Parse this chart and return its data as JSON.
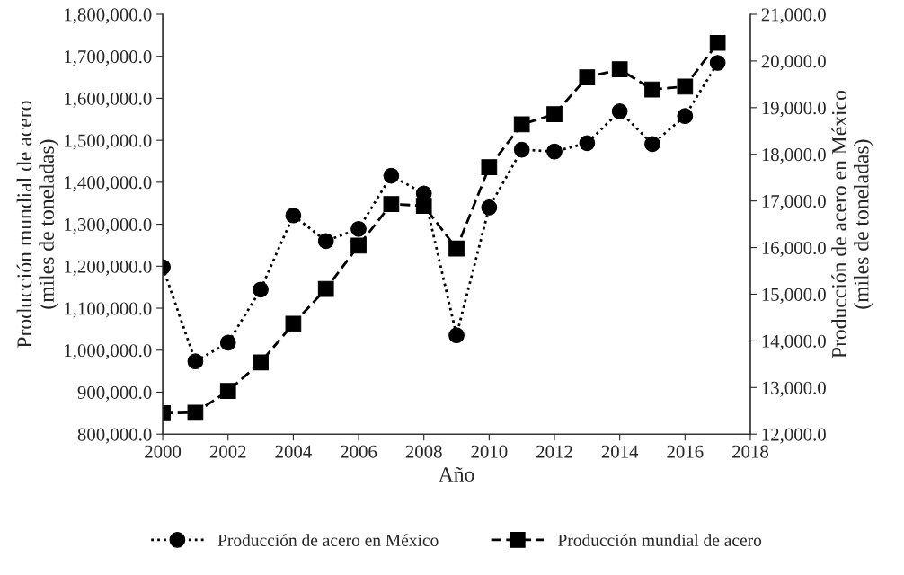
{
  "chart_data": {
    "type": "line",
    "xlabel": "Año",
    "ylabel": "Producción mundial de acero\n(miles de toneladas)",
    "y2label": "Producción de acero en México\n(miles de toneladas)",
    "x": [
      2000,
      2001,
      2002,
      2003,
      2004,
      2005,
      2006,
      2007,
      2008,
      2009,
      2010,
      2011,
      2012,
      2013,
      2014,
      2015,
      2016,
      2017
    ],
    "series": [
      {
        "name": "Producción de acero en México",
        "color": "#000000",
        "axis": "y2",
        "marker": "circle",
        "line_style": "dotted",
        "values": [
          15580,
          13560,
          13960,
          15100,
          16690,
          16140,
          16400,
          17540,
          17160,
          14120,
          16860,
          18100,
          18060,
          18240,
          18920,
          18220,
          18820,
          19960
        ]
      },
      {
        "name": "Producción mundial de acero",
        "color": "#000000",
        "axis": "y",
        "marker": "square",
        "line_style": "dashed",
        "values": [
          850000,
          851000,
          903000,
          971000,
          1063000,
          1146000,
          1249000,
          1348000,
          1344000,
          1242000,
          1436000,
          1538000,
          1562000,
          1650000,
          1669000,
          1621000,
          1628000,
          1732000
        ]
      }
    ],
    "xlim": [
      2000,
      2018
    ],
    "xticks": [
      2000,
      2002,
      2004,
      2006,
      2008,
      2010,
      2012,
      2014,
      2016,
      2018
    ],
    "ylim": [
      800000,
      1800000
    ],
    "yticks": [
      {
        "value": 800000,
        "label": "800,000.0"
      },
      {
        "value": 900000,
        "label": "900,000.0"
      },
      {
        "value": 1000000,
        "label": "1,000,000.0"
      },
      {
        "value": 1100000,
        "label": "1,100,000.0"
      },
      {
        "value": 1200000,
        "label": "1,200,000.0"
      },
      {
        "value": 1300000,
        "label": "1,300,000.0"
      },
      {
        "value": 1400000,
        "label": "1,400,000.0"
      },
      {
        "value": 1500000,
        "label": "1,500,000.0"
      },
      {
        "value": 1600000,
        "label": "1,600,000.0"
      },
      {
        "value": 1700000,
        "label": "1,700,000.0"
      },
      {
        "value": 1800000,
        "label": "1,800,000.0"
      }
    ],
    "y2lim": [
      12000,
      21000
    ],
    "y2ticks": [
      {
        "value": 12000,
        "label": "12,000.0"
      },
      {
        "value": 13000,
        "label": "13,000.0"
      },
      {
        "value": 14000,
        "label": "14,000.0"
      },
      {
        "value": 15000,
        "label": "15,000.0"
      },
      {
        "value": 16000,
        "label": "16,000.0"
      },
      {
        "value": 17000,
        "label": "17,000.0"
      },
      {
        "value": 18000,
        "label": "18,000.0"
      },
      {
        "value": 19000,
        "label": "19,000.0"
      },
      {
        "value": 20000,
        "label": "20,000.0"
      },
      {
        "value": 21000,
        "label": "21,000.0"
      }
    ],
    "grid": false,
    "legend": "bottom"
  }
}
